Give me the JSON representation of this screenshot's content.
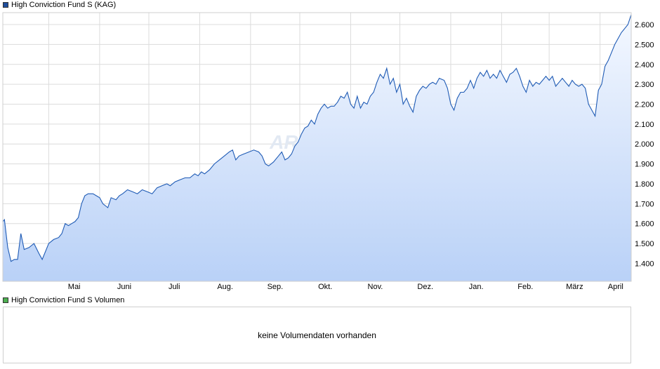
{
  "legend": {
    "main_label": "High Conviction Fund S (KAG)",
    "main_color": "#1f4e9c",
    "volume_label": "High Conviction Fund S Volumen",
    "volume_color": "#4caf50"
  },
  "watermark": "ARIVA.DE",
  "volume": {
    "message": "keine Volumendaten vorhanden"
  },
  "colors": {
    "line": "#1f5bb5",
    "fill_top": "#f4f8ff",
    "fill_bottom": "#b9d1f7",
    "grid": "#dcdcdc"
  },
  "chart_data": {
    "type": "area",
    "title": "",
    "xlabel": "",
    "ylabel": "",
    "ylim": [
      1310,
      2660
    ],
    "y_ticks": [
      1400,
      1500,
      1600,
      1700,
      1800,
      1900,
      2000,
      2100,
      2200,
      2300,
      2400,
      2500,
      2600
    ],
    "y_tick_labels": [
      "1.400",
      "1.500",
      "1.600",
      "1.700",
      "1.800",
      "1.900",
      "2.000",
      "2.100",
      "2.200",
      "2.300",
      "2.400",
      "2.500",
      "2.600"
    ],
    "x_tick_labels": [
      "Mai",
      "Juni",
      "Juli",
      "Aug.",
      "Sep.",
      "Okt.",
      "Nov.",
      "Dez.",
      "Jan.",
      "Feb.",
      "März",
      "April"
    ],
    "x_range": [
      "2023-04-03",
      "2024-04-20"
    ],
    "grid": true,
    "series": [
      {
        "name": "High Conviction Fund S (KAG)",
        "points": [
          [
            "2023-04-03",
            1610
          ],
          [
            "2023-04-04",
            1620
          ],
          [
            "2023-04-06",
            1480
          ],
          [
            "2023-04-08",
            1410
          ],
          [
            "2023-04-10",
            1420
          ],
          [
            "2023-04-12",
            1420
          ],
          [
            "2023-04-14",
            1550
          ],
          [
            "2023-04-16",
            1470
          ],
          [
            "2023-04-19",
            1480
          ],
          [
            "2023-04-22",
            1500
          ],
          [
            "2023-04-25",
            1450
          ],
          [
            "2023-04-27",
            1420
          ],
          [
            "2023-05-01",
            1500
          ],
          [
            "2023-05-04",
            1520
          ],
          [
            "2023-05-07",
            1530
          ],
          [
            "2023-05-09",
            1550
          ],
          [
            "2023-05-11",
            1600
          ],
          [
            "2023-05-13",
            1590
          ],
          [
            "2023-05-15",
            1600
          ],
          [
            "2023-05-17",
            1610
          ],
          [
            "2023-05-19",
            1630
          ],
          [
            "2023-05-21",
            1700
          ],
          [
            "2023-05-23",
            1740
          ],
          [
            "2023-05-25",
            1750
          ],
          [
            "2023-05-28",
            1750
          ],
          [
            "2023-05-30",
            1740
          ],
          [
            "2023-06-01",
            1730
          ],
          [
            "2023-06-03",
            1700
          ],
          [
            "2023-06-06",
            1680
          ],
          [
            "2023-06-08",
            1730
          ],
          [
            "2023-06-11",
            1720
          ],
          [
            "2023-06-13",
            1740
          ],
          [
            "2023-06-15",
            1750
          ],
          [
            "2023-06-18",
            1770
          ],
          [
            "2023-06-21",
            1760
          ],
          [
            "2023-06-24",
            1750
          ],
          [
            "2023-06-27",
            1770
          ],
          [
            "2023-06-30",
            1760
          ],
          [
            "2023-07-03",
            1750
          ],
          [
            "2023-07-06",
            1780
          ],
          [
            "2023-07-09",
            1790
          ],
          [
            "2023-07-12",
            1800
          ],
          [
            "2023-07-14",
            1790
          ],
          [
            "2023-07-17",
            1810
          ],
          [
            "2023-07-20",
            1820
          ],
          [
            "2023-07-23",
            1830
          ],
          [
            "2023-07-26",
            1830
          ],
          [
            "2023-07-29",
            1850
          ],
          [
            "2023-07-31",
            1840
          ],
          [
            "2023-08-02",
            1860
          ],
          [
            "2023-08-04",
            1850
          ],
          [
            "2023-08-07",
            1870
          ],
          [
            "2023-08-10",
            1900
          ],
          [
            "2023-08-13",
            1920
          ],
          [
            "2023-08-16",
            1940
          ],
          [
            "2023-08-19",
            1960
          ],
          [
            "2023-08-21",
            1970
          ],
          [
            "2023-08-23",
            1920
          ],
          [
            "2023-08-25",
            1940
          ],
          [
            "2023-08-28",
            1950
          ],
          [
            "2023-08-31",
            1960
          ],
          [
            "2023-09-03",
            1970
          ],
          [
            "2023-09-06",
            1960
          ],
          [
            "2023-09-08",
            1940
          ],
          [
            "2023-09-10",
            1900
          ],
          [
            "2023-09-12",
            1890
          ],
          [
            "2023-09-15",
            1910
          ],
          [
            "2023-09-18",
            1940
          ],
          [
            "2023-09-20",
            1960
          ],
          [
            "2023-09-22",
            1920
          ],
          [
            "2023-09-24",
            1930
          ],
          [
            "2023-09-26",
            1950
          ],
          [
            "2023-09-28",
            1990
          ],
          [
            "2023-09-30",
            2010
          ],
          [
            "2023-10-02",
            2050
          ],
          [
            "2023-10-04",
            2080
          ],
          [
            "2023-10-06",
            2090
          ],
          [
            "2023-10-08",
            2120
          ],
          [
            "2023-10-10",
            2100
          ],
          [
            "2023-10-12",
            2150
          ],
          [
            "2023-10-14",
            2180
          ],
          [
            "2023-10-16",
            2200
          ],
          [
            "2023-10-18",
            2180
          ],
          [
            "2023-10-20",
            2190
          ],
          [
            "2023-10-22",
            2190
          ],
          [
            "2023-10-24",
            2210
          ],
          [
            "2023-10-26",
            2240
          ],
          [
            "2023-10-28",
            2230
          ],
          [
            "2023-10-30",
            2260
          ],
          [
            "2023-11-01",
            2200
          ],
          [
            "2023-11-03",
            2180
          ],
          [
            "2023-11-05",
            2240
          ],
          [
            "2023-11-07",
            2180
          ],
          [
            "2023-11-09",
            2210
          ],
          [
            "2023-11-11",
            2200
          ],
          [
            "2023-11-13",
            2240
          ],
          [
            "2023-11-15",
            2260
          ],
          [
            "2023-11-17",
            2310
          ],
          [
            "2023-11-19",
            2350
          ],
          [
            "2023-11-21",
            2330
          ],
          [
            "2023-11-23",
            2380
          ],
          [
            "2023-11-25",
            2300
          ],
          [
            "2023-11-27",
            2330
          ],
          [
            "2023-11-29",
            2260
          ],
          [
            "2023-12-01",
            2300
          ],
          [
            "2023-12-03",
            2200
          ],
          [
            "2023-12-05",
            2230
          ],
          [
            "2023-12-07",
            2190
          ],
          [
            "2023-12-09",
            2160
          ],
          [
            "2023-12-11",
            2240
          ],
          [
            "2023-12-13",
            2270
          ],
          [
            "2023-12-15",
            2290
          ],
          [
            "2023-12-17",
            2280
          ],
          [
            "2023-12-19",
            2300
          ],
          [
            "2023-12-21",
            2310
          ],
          [
            "2023-12-23",
            2300
          ],
          [
            "2023-12-25",
            2330
          ],
          [
            "2023-12-28",
            2320
          ],
          [
            "2023-12-30",
            2280
          ],
          [
            "2024-01-01",
            2200
          ],
          [
            "2024-01-03",
            2170
          ],
          [
            "2024-01-05",
            2230
          ],
          [
            "2024-01-07",
            2260
          ],
          [
            "2024-01-09",
            2260
          ],
          [
            "2024-01-11",
            2280
          ],
          [
            "2024-01-13",
            2320
          ],
          [
            "2024-01-15",
            2280
          ],
          [
            "2024-01-17",
            2330
          ],
          [
            "2024-01-19",
            2360
          ],
          [
            "2024-01-21",
            2340
          ],
          [
            "2024-01-23",
            2370
          ],
          [
            "2024-01-25",
            2330
          ],
          [
            "2024-01-27",
            2350
          ],
          [
            "2024-01-29",
            2330
          ],
          [
            "2024-01-31",
            2370
          ],
          [
            "2024-02-02",
            2340
          ],
          [
            "2024-02-04",
            2310
          ],
          [
            "2024-02-06",
            2350
          ],
          [
            "2024-02-08",
            2360
          ],
          [
            "2024-02-10",
            2380
          ],
          [
            "2024-02-12",
            2340
          ],
          [
            "2024-02-14",
            2290
          ],
          [
            "2024-02-16",
            2260
          ],
          [
            "2024-02-18",
            2320
          ],
          [
            "2024-02-20",
            2290
          ],
          [
            "2024-02-22",
            2310
          ],
          [
            "2024-02-24",
            2300
          ],
          [
            "2024-02-26",
            2320
          ],
          [
            "2024-02-28",
            2340
          ],
          [
            "2024-03-01",
            2320
          ],
          [
            "2024-03-03",
            2340
          ],
          [
            "2024-03-05",
            2290
          ],
          [
            "2024-03-07",
            2310
          ],
          [
            "2024-03-09",
            2330
          ],
          [
            "2024-03-11",
            2310
          ],
          [
            "2024-03-13",
            2290
          ],
          [
            "2024-03-15",
            2320
          ],
          [
            "2024-03-17",
            2300
          ],
          [
            "2024-03-19",
            2290
          ],
          [
            "2024-03-21",
            2300
          ],
          [
            "2024-03-23",
            2280
          ],
          [
            "2024-03-25",
            2200
          ],
          [
            "2024-03-27",
            2170
          ],
          [
            "2024-03-29",
            2140
          ],
          [
            "2024-03-31",
            2270
          ],
          [
            "2024-04-02",
            2300
          ],
          [
            "2024-04-04",
            2390
          ],
          [
            "2024-04-06",
            2420
          ],
          [
            "2024-04-08",
            2460
          ],
          [
            "2024-04-10",
            2500
          ],
          [
            "2024-04-12",
            2530
          ],
          [
            "2024-04-14",
            2560
          ],
          [
            "2024-04-16",
            2580
          ],
          [
            "2024-04-18",
            2600
          ],
          [
            "2024-04-20",
            2650
          ]
        ]
      }
    ]
  }
}
